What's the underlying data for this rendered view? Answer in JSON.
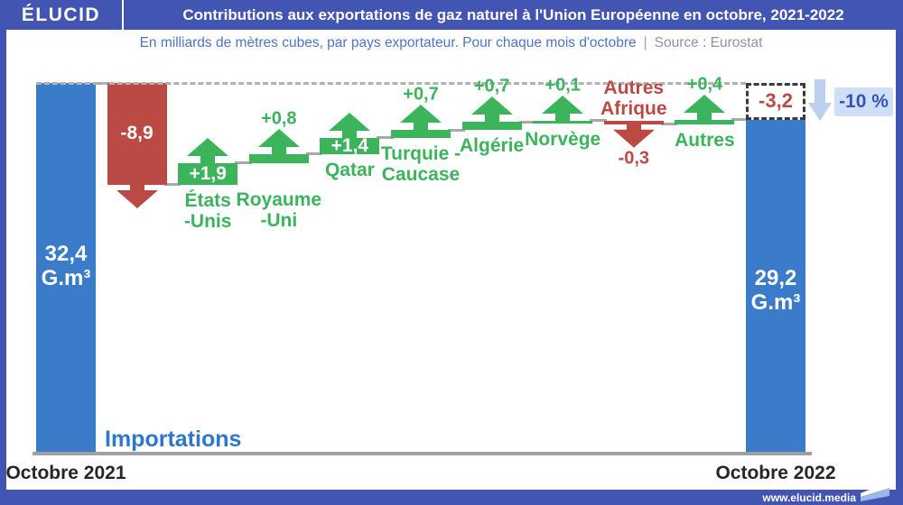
{
  "header": {
    "logo": "ÉLUCID",
    "title": "Contributions aux exportations de gaz naturel à l'Union Européenne en octobre, 2021-2022"
  },
  "subtitle": {
    "main": "En milliards de mètres cubes, par pays exportateur. Pour chaque mois d'octobre",
    "separator": "|",
    "source": "Source : Eurostat"
  },
  "footer": {
    "url": "www.elucid.media"
  },
  "colors": {
    "header_bg": "#4355b2",
    "total_bar": "#3a7bca",
    "increase": "#3cb45c",
    "decrease": "#bb4a45",
    "increase_text": "#3cb45c",
    "decrease_text": "#bb4a45",
    "light_arrow": "#bdd1ef",
    "badge_bg": "#cfdff5",
    "badge_text": "#3553b8",
    "axis": "#a0a0a0",
    "series_label": "#2d78cc"
  },
  "chart_data": {
    "type": "waterfall",
    "unit": "G.m³",
    "series_label": "Importations",
    "x_axis_labels": [
      "Octobre 2021",
      "Octobre 2022"
    ],
    "steps": [
      {
        "kind": "total",
        "label": "Octobre 2021",
        "value": 32.4,
        "display": "32,4",
        "unit": "G.m³"
      },
      {
        "kind": "delta",
        "label_lines": [],
        "value": -8.9,
        "display": "-8,9",
        "value_position": "inside"
      },
      {
        "kind": "delta",
        "label_lines": [
          "États",
          "-Unis"
        ],
        "value": 1.9,
        "display": "+1,9",
        "value_position": "inside"
      },
      {
        "kind": "delta",
        "label_lines": [
          "Royaume",
          "-Uni"
        ],
        "value": 0.8,
        "display": "+0,8",
        "value_position": "above"
      },
      {
        "kind": "delta",
        "label_lines": [
          "Qatar"
        ],
        "value": 1.4,
        "display": "+1,4",
        "value_position": "inside"
      },
      {
        "kind": "delta",
        "label_lines": [
          "Turquie -",
          "Caucase"
        ],
        "value": 0.7,
        "display": "+0,7",
        "value_position": "above"
      },
      {
        "kind": "delta",
        "label_lines": [
          "Algérie"
        ],
        "value": 0.7,
        "display": "+0,7",
        "value_position": "above"
      },
      {
        "kind": "delta",
        "label_lines": [
          "Norvège"
        ],
        "value": 0.1,
        "display": "+0,1",
        "value_position": "above"
      },
      {
        "kind": "delta",
        "label_lines": [
          "Autres",
          "Afrique"
        ],
        "value": -0.3,
        "display": "-0,3",
        "value_position": "below",
        "label_position": "above"
      },
      {
        "kind": "delta",
        "label_lines": [
          "Autres"
        ],
        "value": 0.4,
        "display": "+0,4",
        "value_position": "above"
      },
      {
        "kind": "total",
        "label": "Octobre 2022",
        "value": 29.2,
        "display": "29,2",
        "unit": "G.m³"
      }
    ],
    "net_change": {
      "display": "-3,2",
      "percent": "-10 %"
    }
  }
}
